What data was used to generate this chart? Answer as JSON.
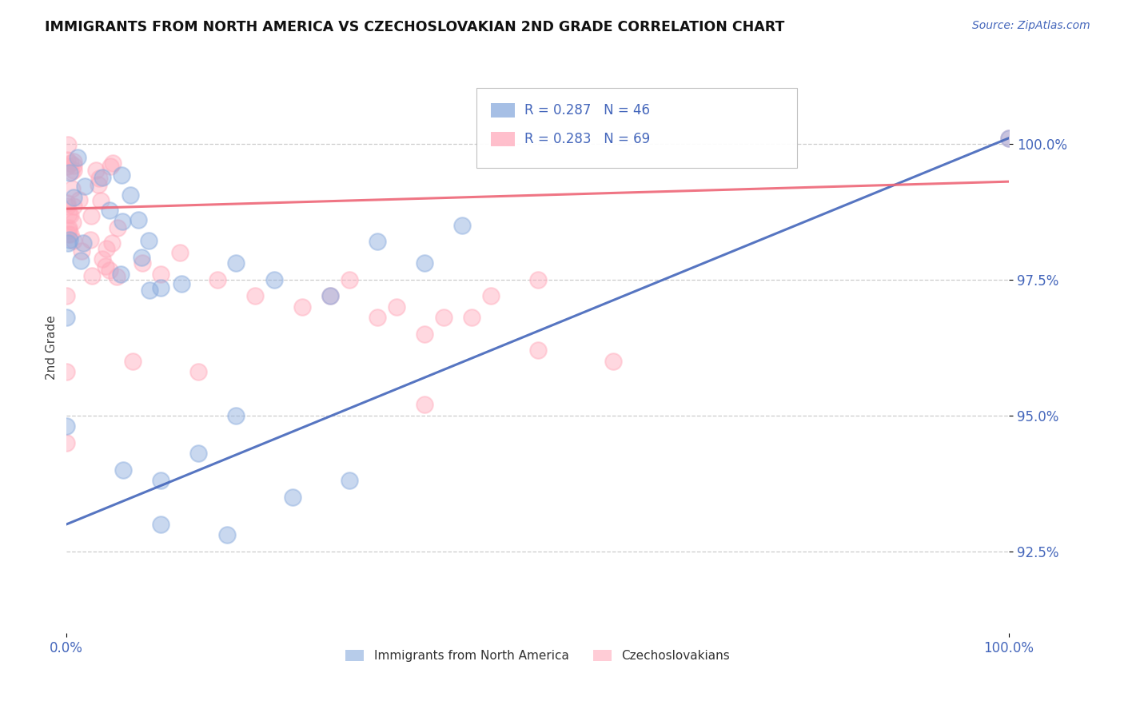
{
  "title": "IMMIGRANTS FROM NORTH AMERICA VS CZECHOSLOVAKIAN 2ND GRADE CORRELATION CHART",
  "source_text": "Source: ZipAtlas.com",
  "ylabel": "2nd Grade",
  "xlim": [
    0.0,
    1.0
  ],
  "ylim": [
    0.91,
    1.015
  ],
  "yticks": [
    0.925,
    0.95,
    0.975,
    1.0
  ],
  "ytick_labels": [
    "92.5%",
    "95.0%",
    "97.5%",
    "100.0%"
  ],
  "xtick_labels": [
    "0.0%",
    "100.0%"
  ],
  "legend_text_blue": "R = 0.287   N = 46",
  "legend_text_pink": "R = 0.283   N = 69",
  "color_blue": "#88aadd",
  "color_pink": "#ffaabb",
  "color_blue_line": "#4466bb",
  "color_pink_line": "#ee6677",
  "legend_label_blue": "Immigrants from North America",
  "legend_label_pink": "Czechoslovakians",
  "background_color": "#ffffff",
  "grid_color": "#cccccc",
  "blue_line_x0": 0.0,
  "blue_line_y0": 0.93,
  "blue_line_x1": 1.0,
  "blue_line_y1": 1.001,
  "pink_line_x0": 0.0,
  "pink_line_y0": 0.988,
  "pink_line_x1": 1.0,
  "pink_line_y1": 0.993
}
